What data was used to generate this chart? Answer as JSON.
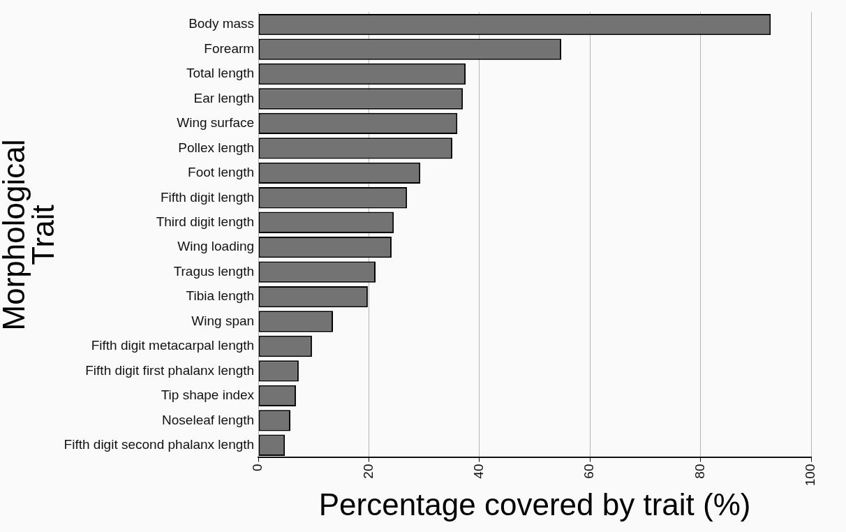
{
  "chart_data": {
    "type": "bar",
    "orientation": "horizontal",
    "xlabel": "Percentage covered by trait (%)",
    "ylabel": "Morphological Trait",
    "categories": [
      "Body mass",
      "Forearm",
      "Total length",
      "Ear length",
      "Wing surface",
      "Pollex length",
      "Foot length",
      "Fifth digit length",
      "Third digit length",
      "Wing loading",
      "Tragus length",
      "Tibia length",
      "Wing span",
      "Fifth digit metacarpal length",
      "Fifth digit first phalanx length",
      "Tip shape index",
      "Noseleaf length",
      "Fifth digit second phalanx length"
    ],
    "values": [
      92.7,
      54.8,
      37.5,
      37.0,
      36.0,
      35.1,
      29.3,
      26.9,
      24.5,
      24.1,
      21.2,
      19.8,
      13.5,
      9.7,
      7.3,
      6.8,
      5.8,
      4.8
    ],
    "color": "#737373",
    "xlim": [
      0,
      100
    ],
    "xticks": [
      0,
      20,
      40,
      60,
      80,
      100
    ],
    "grid": "x",
    "legend": false
  }
}
